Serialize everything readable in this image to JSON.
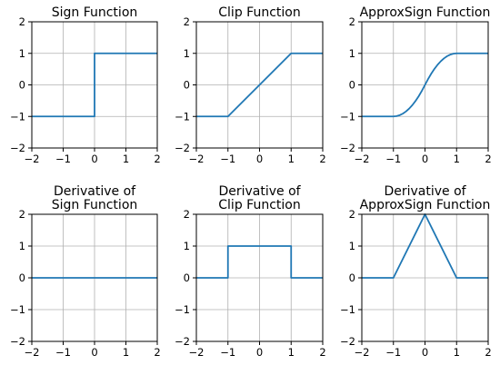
{
  "colors": {
    "series": "#1f77b4",
    "grid": "#b0b0b0",
    "axes": "#000000"
  },
  "chart_data": [
    {
      "type": "line",
      "title_lines": [
        "Sign Function"
      ],
      "xlim": [
        -2,
        2
      ],
      "ylim": [
        -2,
        2
      ],
      "xticks": [
        -2,
        -1,
        0,
        1,
        2
      ],
      "yticks": [
        -2,
        -1,
        0,
        1,
        2
      ],
      "grid": true,
      "series": [
        {
          "x": [
            -2,
            0,
            0,
            2
          ],
          "y": [
            -1,
            -1,
            1,
            1
          ]
        }
      ]
    },
    {
      "type": "line",
      "title_lines": [
        "Clip Function"
      ],
      "xlim": [
        -2,
        2
      ],
      "ylim": [
        -2,
        2
      ],
      "xticks": [
        -2,
        -1,
        0,
        1,
        2
      ],
      "yticks": [
        -2,
        -1,
        0,
        1,
        2
      ],
      "grid": true,
      "series": [
        {
          "x": [
            -2,
            -1,
            1,
            2
          ],
          "y": [
            -1,
            -1,
            1,
            1
          ]
        }
      ]
    },
    {
      "type": "line",
      "title_lines": [
        "ApproxSign Function"
      ],
      "xlim": [
        -2,
        2
      ],
      "ylim": [
        -2,
        2
      ],
      "xticks": [
        -2,
        -1,
        0,
        1,
        2
      ],
      "yticks": [
        -2,
        -1,
        0,
        1,
        2
      ],
      "grid": true,
      "series": [
        {
          "x": [
            -2,
            -1,
            -0.9,
            -0.8,
            -0.7,
            -0.6,
            -0.5,
            -0.4,
            -0.3,
            -0.2,
            -0.1,
            0,
            0.1,
            0.2,
            0.3,
            0.4,
            0.5,
            0.6,
            0.7,
            0.8,
            0.9,
            1,
            2
          ],
          "y": [
            -1,
            -1,
            -0.99,
            -0.96,
            -0.91,
            -0.84,
            -0.75,
            -0.64,
            -0.51,
            -0.36,
            -0.19,
            0,
            0.19,
            0.36,
            0.51,
            0.64,
            0.75,
            0.84,
            0.91,
            0.96,
            0.99,
            1,
            1
          ]
        }
      ]
    },
    {
      "type": "line",
      "title_lines": [
        "Derivative of",
        "Sign Function"
      ],
      "xlim": [
        -2,
        2
      ],
      "ylim": [
        -2,
        2
      ],
      "xticks": [
        -2,
        -1,
        0,
        1,
        2
      ],
      "yticks": [
        -2,
        -1,
        0,
        1,
        2
      ],
      "grid": true,
      "series": [
        {
          "x": [
            -2,
            2
          ],
          "y": [
            0,
            0
          ]
        }
      ]
    },
    {
      "type": "line",
      "title_lines": [
        "Derivative of",
        "Clip Function"
      ],
      "xlim": [
        -2,
        2
      ],
      "ylim": [
        -2,
        2
      ],
      "xticks": [
        -2,
        -1,
        0,
        1,
        2
      ],
      "yticks": [
        -2,
        -1,
        0,
        1,
        2
      ],
      "grid": true,
      "series": [
        {
          "x": [
            -2,
            -1,
            -1,
            1,
            1,
            2
          ],
          "y": [
            0,
            0,
            1,
            1,
            0,
            0
          ]
        }
      ]
    },
    {
      "type": "line",
      "title_lines": [
        "Derivative of",
        "ApproxSign Function"
      ],
      "xlim": [
        -2,
        2
      ],
      "ylim": [
        -2,
        2
      ],
      "xticks": [
        -2,
        -1,
        0,
        1,
        2
      ],
      "yticks": [
        -2,
        -1,
        0,
        1,
        2
      ],
      "grid": true,
      "series": [
        {
          "x": [
            -2,
            -1,
            0,
            1,
            2
          ],
          "y": [
            0,
            0,
            2,
            0,
            0
          ]
        }
      ]
    }
  ]
}
